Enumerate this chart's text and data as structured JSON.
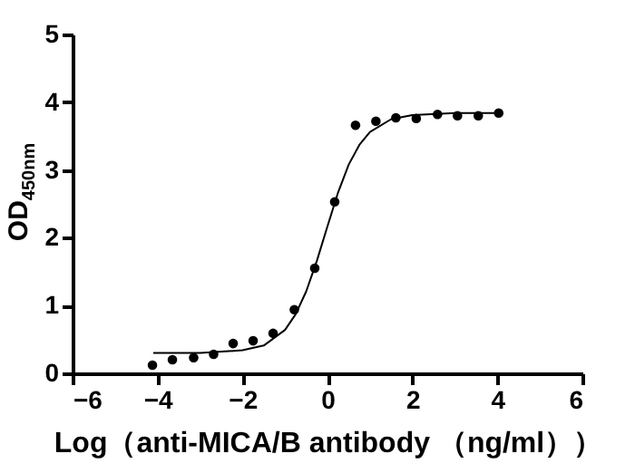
{
  "chart_data": {
    "type": "scatter",
    "xlabel": "Log（anti-MICA/B antibody （ng/ml））",
    "ylabel": "OD$_{450nm}$",
    "xlim": [
      -6,
      6
    ],
    "xticks": [
      -6,
      -4,
      -2,
      0,
      2,
      4,
      6
    ],
    "ylim": [
      0,
      5
    ],
    "yticks": [
      0,
      1,
      2,
      3,
      4,
      5
    ],
    "series": [
      {
        "color": "#000000",
        "marker": "circle",
        "x": [
          -4.12,
          -3.65,
          -3.15,
          -2.68,
          -2.22,
          -1.75,
          -1.28,
          -0.78,
          -0.3,
          0.17,
          0.66,
          1.14,
          1.61,
          2.09,
          2.59,
          3.06,
          3.55,
          4.03
        ],
        "values": [
          0.12,
          0.2,
          0.23,
          0.28,
          0.44,
          0.48,
          0.59,
          0.94,
          1.55,
          2.53,
          3.66,
          3.72,
          3.77,
          3.76,
          3.82,
          3.8,
          3.8,
          3.84
        ]
      },
      {
        "type": "line",
        "color": "#000000",
        "marker": "none",
        "x": [
          -4.1,
          -3,
          -2,
          -1.5,
          -1,
          -0.75,
          -0.5,
          -0.25,
          0,
          0.25,
          0.5,
          0.75,
          1,
          1.5,
          2,
          3,
          4.03
        ],
        "values": [
          0.3,
          0.3,
          0.34,
          0.41,
          0.64,
          0.87,
          1.21,
          1.66,
          2.17,
          2.67,
          3.08,
          3.37,
          3.56,
          3.75,
          3.81,
          3.84,
          3.84
        ]
      }
    ]
  }
}
